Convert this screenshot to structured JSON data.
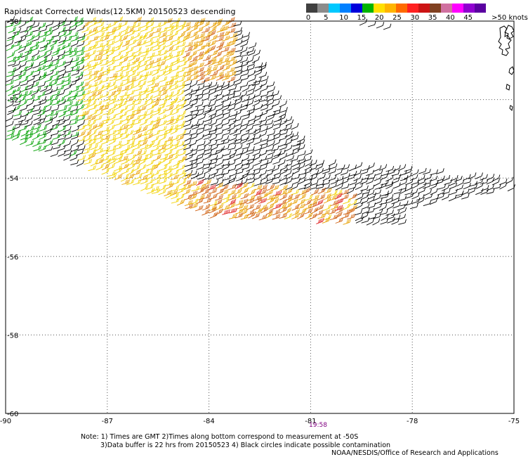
{
  "title": "Rapidscat Corrected Winds(12.5KM) 20150523 descending",
  "legend": {
    "colors": [
      "#404040",
      "#8c8c8c",
      "#00c8ff",
      "#0080ff",
      "#0000dc",
      "#00b400",
      "#ffe000",
      "#ffb400",
      "#ff6a00",
      "#ff2020",
      "#cc1414",
      "#804020",
      "#d070a0",
      "#ff00ff",
      "#9000d0",
      "#5a00a0"
    ],
    "labels": [
      "0",
      "5",
      "10",
      "15",
      "20",
      "25",
      "30",
      "35",
      "40",
      "45",
      ">50 knots"
    ],
    "unit": "knots"
  },
  "map": {
    "lon_ticks": [
      "-90",
      "-87",
      "-84",
      "-81",
      "-78",
      "-75"
    ],
    "lat_ticks": [
      "-50",
      "-52",
      "-54",
      "-56",
      "-58",
      "-60"
    ],
    "lon_range": [
      -90,
      -75
    ],
    "lat_range": [
      -50,
      -60
    ],
    "wind_region": "descending swath of wind barbs, strongest (25-35 kt) near -83 lon",
    "land": "coastline fragments at top-right (-75 lon, -50 to -52 lat)"
  },
  "time_label": "19:58",
  "note_line1": "Note: 1) Times are GMT 2)Times along bottom correspond to measurement at -50S",
  "note_line2": "3)Data buffer is 22 hrs from 20150523 4) Black circles indicate possible contamination",
  "credit": "NOAA/NESDIS/Office of Research and Applications"
}
